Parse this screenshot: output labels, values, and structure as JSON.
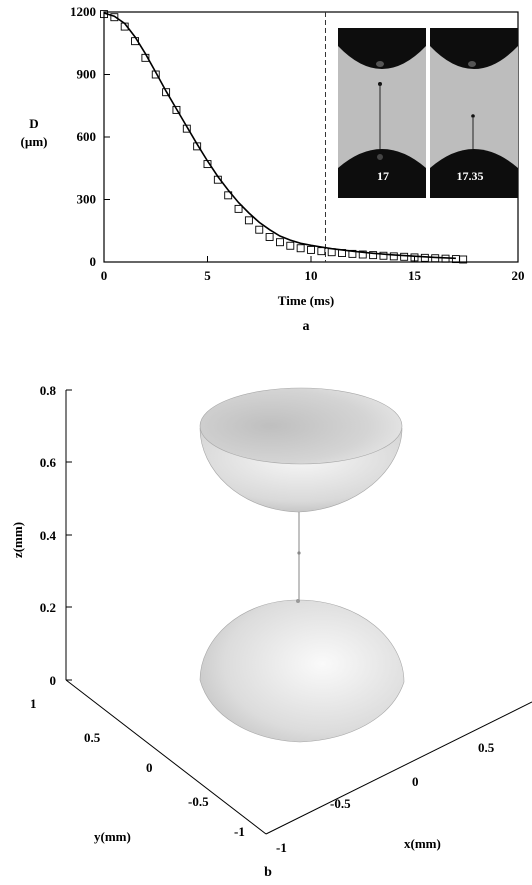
{
  "panel_a": {
    "letter": "a",
    "ylabel_line1": "D",
    "ylabel_line2": "(µm)",
    "xlabel": "Time (ms)",
    "insets": [
      {
        "label": "17"
      },
      {
        "label": "17.35"
      }
    ]
  },
  "panel_b": {
    "letter": "b",
    "zlabel": "z(mm)",
    "ylabel": "y(mm)",
    "xlabel": "x(mm)",
    "z_ticks": [
      "0",
      "0.2",
      "0.4",
      "0.6",
      "0.8"
    ],
    "y_ticks": [
      "1",
      "0.5",
      "0",
      "-0.5",
      "-1"
    ],
    "x_ticks": [
      "-1",
      "-0.5",
      "0",
      "0.5"
    ]
  },
  "chart_data": [
    {
      "type": "line",
      "panel": "a",
      "xlabel": "Time (ms)",
      "ylabel": "D (µm)",
      "xlim": [
        0,
        20
      ],
      "ylim": [
        0,
        1200
      ],
      "x_ticks": [
        0,
        5,
        10,
        15,
        20
      ],
      "y_ticks": [
        0,
        300,
        600,
        900,
        1200
      ],
      "vertical_dashed_line_x": 10.7,
      "series": [
        {
          "marker": "square",
          "x": [
            0,
            0.5,
            1,
            1.5,
            2,
            2.5,
            3,
            3.5,
            4,
            4.5,
            5,
            5.5,
            6,
            6.5,
            7,
            7.5,
            8,
            8.5,
            9,
            9.5,
            10,
            10.5,
            11,
            11.5,
            12,
            12.5,
            13,
            13.5,
            14,
            14.5,
            15,
            15.5,
            16,
            16.5,
            17,
            17.35
          ],
          "y": [
            1190,
            1175,
            1130,
            1060,
            980,
            900,
            815,
            730,
            640,
            555,
            470,
            395,
            320,
            255,
            200,
            155,
            120,
            95,
            78,
            66,
            58,
            52,
            47,
            43,
            39,
            36,
            33,
            30,
            27,
            25,
            22,
            20,
            18,
            16,
            14,
            12
          ]
        },
        {
          "marker": "none",
          "x": [
            0,
            0.5,
            1,
            1.5,
            2,
            2.5,
            3,
            3.5,
            4,
            4.5,
            5,
            5.5,
            6,
            6.5,
            7,
            7.5,
            8,
            8.5,
            9,
            9.5,
            10,
            10.5,
            11,
            12,
            13,
            14,
            15,
            16,
            17
          ],
          "y": [
            1195,
            1180,
            1145,
            1080,
            1000,
            910,
            820,
            735,
            650,
            565,
            485,
            410,
            345,
            285,
            235,
            190,
            155,
            125,
            105,
            90,
            80,
            72,
            64,
            52,
            42,
            34,
            28,
            22,
            18
          ]
        }
      ]
    }
  ]
}
